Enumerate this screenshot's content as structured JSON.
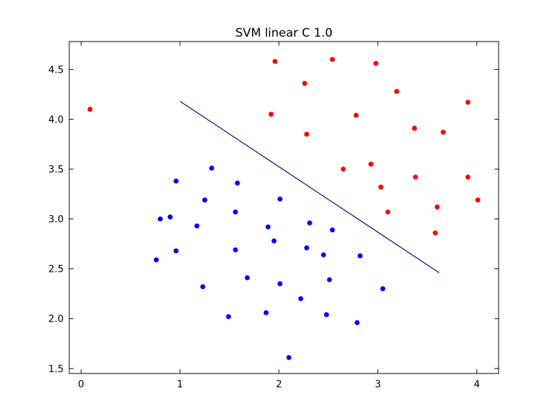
{
  "chart_data": {
    "type": "scatter",
    "title": "SVM linear C 1.0",
    "xlabel": "",
    "ylabel": "",
    "xlim": [
      -0.12,
      4.22
    ],
    "ylim": [
      1.45,
      4.78
    ],
    "x_ticks": [
      {
        "value": 0,
        "label": "0"
      },
      {
        "value": 1,
        "label": "1"
      },
      {
        "value": 2,
        "label": "2"
      },
      {
        "value": 3,
        "label": "3"
      },
      {
        "value": 4,
        "label": "4"
      }
    ],
    "y_ticks": [
      {
        "value": 1.5,
        "label": "1.5"
      },
      {
        "value": 2.0,
        "label": "2.0"
      },
      {
        "value": 2.5,
        "label": "2.5"
      },
      {
        "value": 3.0,
        "label": "3.0"
      },
      {
        "value": 3.5,
        "label": "3.5"
      },
      {
        "value": 4.0,
        "label": "4.0"
      },
      {
        "value": 4.5,
        "label": "4.5"
      }
    ],
    "grid": false,
    "legend": "none",
    "series": [
      {
        "color": "#ff0000",
        "points": [
          [
            0.09,
            4.1
          ],
          [
            1.96,
            4.58
          ],
          [
            2.54,
            4.6
          ],
          [
            2.98,
            4.56
          ],
          [
            2.26,
            4.36
          ],
          [
            3.19,
            4.28
          ],
          [
            3.91,
            4.17
          ],
          [
            1.92,
            4.05
          ],
          [
            2.78,
            4.04
          ],
          [
            3.37,
            3.91
          ],
          [
            3.66,
            3.87
          ],
          [
            2.28,
            3.85
          ],
          [
            2.93,
            3.55
          ],
          [
            2.65,
            3.5
          ],
          [
            3.38,
            3.42
          ],
          [
            3.91,
            3.42
          ],
          [
            3.03,
            3.32
          ],
          [
            4.01,
            3.19
          ],
          [
            3.6,
            3.12
          ],
          [
            3.1,
            3.07
          ],
          [
            3.58,
            2.86
          ]
        ]
      },
      {
        "color": "#0000ff",
        "points": [
          [
            1.32,
            3.51
          ],
          [
            0.96,
            3.38
          ],
          [
            1.58,
            3.36
          ],
          [
            1.25,
            3.19
          ],
          [
            2.01,
            3.2
          ],
          [
            1.56,
            3.07
          ],
          [
            0.8,
            3.0
          ],
          [
            0.9,
            3.02
          ],
          [
            2.31,
            2.96
          ],
          [
            1.17,
            2.93
          ],
          [
            1.89,
            2.92
          ],
          [
            2.54,
            2.89
          ],
          [
            1.95,
            2.78
          ],
          [
            2.28,
            2.71
          ],
          [
            1.56,
            2.69
          ],
          [
            0.96,
            2.68
          ],
          [
            2.45,
            2.64
          ],
          [
            2.82,
            2.63
          ],
          [
            0.76,
            2.59
          ],
          [
            1.68,
            2.41
          ],
          [
            2.51,
            2.39
          ],
          [
            2.01,
            2.35
          ],
          [
            1.23,
            2.32
          ],
          [
            3.05,
            2.3
          ],
          [
            2.22,
            2.2
          ],
          [
            1.87,
            2.06
          ],
          [
            1.49,
            2.02
          ],
          [
            2.48,
            2.04
          ],
          [
            2.79,
            1.96
          ],
          [
            2.1,
            1.61
          ]
        ]
      }
    ],
    "decision_line": {
      "color": "#000080",
      "x": [
        1.0,
        3.62
      ],
      "y": [
        4.18,
        2.46
      ]
    }
  }
}
